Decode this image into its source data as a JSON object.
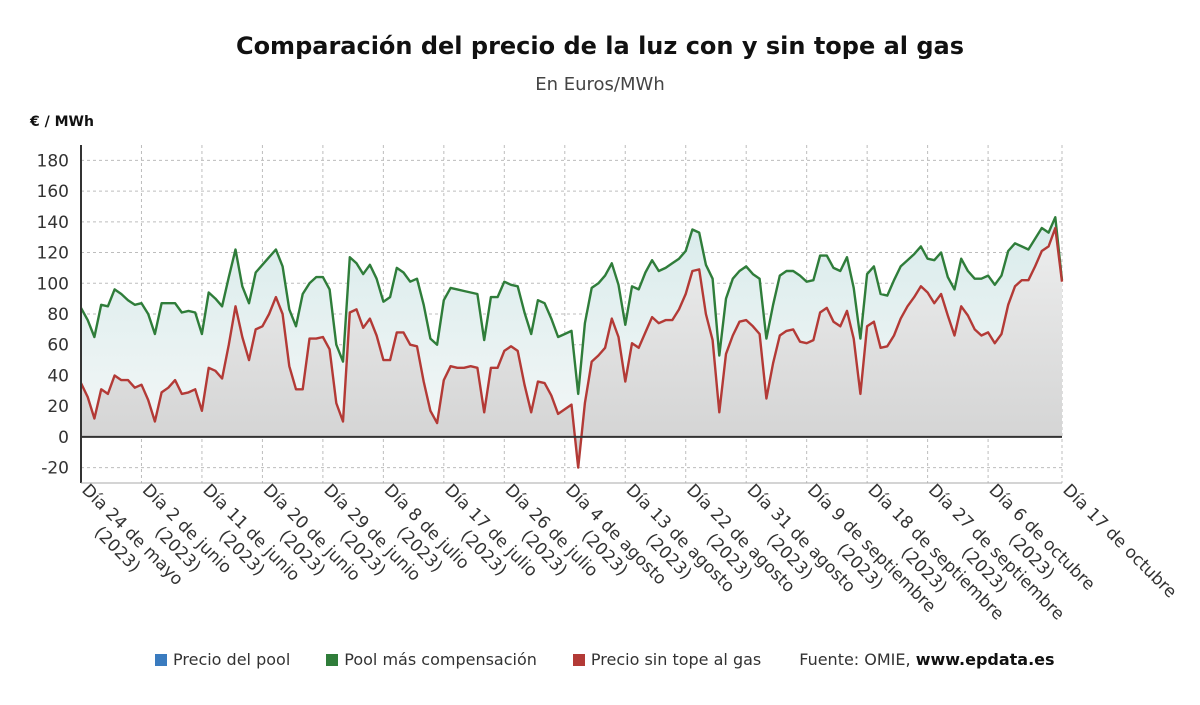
{
  "title": "Comparación del precio de la luz con y sin tope al gas",
  "subtitle": "En Euros/MWh",
  "y_unit": "€ / MWh",
  "legend": [
    {
      "label": "Precio del pool",
      "color": "#3a7bbf"
    },
    {
      "label": "Pool más compensación",
      "color": "#2f7d3a"
    },
    {
      "label": "Precio sin tope al gas",
      "color": "#b33a36"
    }
  ],
  "source_prefix": "Fuente: OMIE, ",
  "source_site": "www.epdata.es",
  "chart_data": {
    "type": "line",
    "x_start": "2023-05-24",
    "x_ticks": [
      "Día 24 de mayo (2023)",
      "Día 2 de junio (2023)",
      "Día 11 de junio (2023)",
      "Día 20 de junio (2023)",
      "Día 29 de junio (2023)",
      "Día 8 de julio (2023)",
      "Día 17 de julio (2023)",
      "Día 26 de julio (2023)",
      "Día 4 de agosto (2023)",
      "Día 13 de agosto (2023)",
      "Día 22 de agosto (2023)",
      "Día 31 de agosto (2023)",
      "Día 9 de septiembre (2023)",
      "Día 18 de septiembre (2023)",
      "Día 27 de septiembre (2023)",
      "Día 6 de octubre (2023)",
      "Día 17 de octubre"
    ],
    "ylim": [
      -30,
      190
    ],
    "y_ticks": [
      -20,
      0,
      20,
      40,
      60,
      80,
      100,
      120,
      140,
      160,
      180
    ],
    "grid": true,
    "series": [
      {
        "name": "Pool más compensación",
        "color": "#2f7d3a",
        "values": [
          84,
          76,
          65,
          86,
          85,
          96,
          93,
          89,
          86,
          87,
          80,
          67,
          87,
          87,
          87,
          81,
          82,
          81,
          67,
          94,
          90,
          85,
          104,
          122,
          98,
          87,
          107,
          112,
          117,
          122,
          111,
          83,
          72,
          93,
          100,
          104,
          104,
          96,
          60,
          49,
          117,
          113,
          106,
          112,
          103,
          88,
          91,
          110,
          107,
          101,
          103,
          86,
          64,
          60,
          89,
          97,
          96,
          95,
          94,
          93,
          63,
          91,
          91,
          101,
          99,
          98,
          81,
          67,
          89,
          87,
          77,
          65,
          67,
          69,
          28,
          74,
          97,
          100,
          105,
          113,
          99,
          73,
          98,
          96,
          107,
          115,
          108,
          110,
          113,
          116,
          121,
          135,
          133,
          112,
          103,
          53,
          90,
          103,
          108,
          111,
          106,
          103,
          64,
          86,
          105,
          108,
          108,
          105,
          101,
          102,
          118,
          118,
          110,
          108,
          117,
          97,
          64,
          106,
          111,
          93,
          92,
          102,
          111,
          115,
          119,
          124,
          116,
          115,
          120,
          104,
          96,
          116,
          108,
          103,
          103,
          105,
          99,
          105,
          121,
          126,
          124,
          122,
          129,
          136,
          133,
          143,
          102
        ],
        "labels": []
      },
      {
        "name": "Precio sin tope al gas",
        "color": "#b33a36",
        "values": [
          35,
          26,
          12,
          31,
          28,
          40,
          37,
          37,
          32,
          34,
          24,
          10,
          29,
          32,
          37,
          28,
          29,
          31,
          17,
          45,
          43,
          38,
          60,
          85,
          65,
          50,
          70,
          72,
          80,
          91,
          80,
          46,
          31,
          31,
          64,
          64,
          65,
          57,
          22,
          10,
          81,
          83,
          71,
          77,
          66,
          50,
          50,
          68,
          68,
          60,
          59,
          36,
          17,
          9,
          37,
          46,
          45,
          45,
          46,
          45,
          16,
          45,
          45,
          56,
          59,
          56,
          34,
          16,
          36,
          35,
          27,
          15,
          18,
          21,
          -20,
          22,
          49,
          53,
          58,
          77,
          65,
          36,
          61,
          58,
          68,
          78,
          74,
          76,
          76,
          83,
          93,
          108,
          109,
          80,
          63,
          16,
          54,
          66,
          75,
          76,
          72,
          67,
          25,
          48,
          66,
          69,
          70,
          62,
          61,
          63,
          81,
          84,
          75,
          72,
          82,
          64,
          28,
          72,
          75,
          58,
          59,
          66,
          77,
          85,
          91,
          98,
          94,
          87,
          93,
          79,
          66,
          85,
          79,
          70,
          66,
          68,
          61,
          67,
          86,
          98,
          102,
          102,
          111,
          121,
          124,
          136,
          101
        ],
        "labels": []
      }
    ]
  }
}
